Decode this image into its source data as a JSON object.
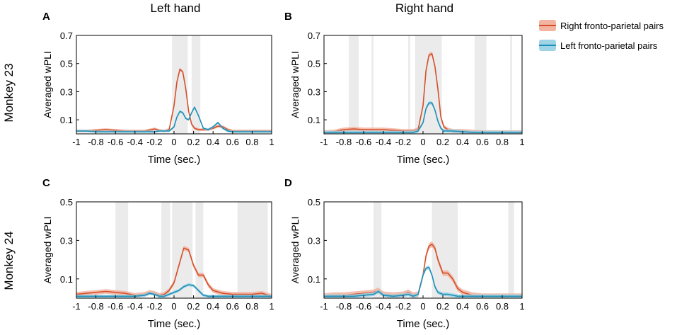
{
  "column_titles": [
    "Left hand",
    "Right hand"
  ],
  "row_labels": [
    "Monkey 23",
    "Monkey 24"
  ],
  "legend": [
    {
      "label": "Right fronto-parietal pairs",
      "color": "#d4502a",
      "band": "#f2b3a0"
    },
    {
      "label": "Left fronto-parietal pairs",
      "color": "#1d8fb8",
      "band": "#9fd3e6"
    }
  ],
  "shade_color": "#ebebeb",
  "chart_data": [
    {
      "panel": "A",
      "type": "line",
      "xlabel": "Time (sec.)",
      "ylabel": "Averaged wPLI",
      "xlim": [
        -1,
        1
      ],
      "ylim": [
        0,
        0.7
      ],
      "xticks": [
        -1,
        -0.8,
        -0.6,
        -0.4,
        -0.2,
        0,
        0.2,
        0.4,
        0.6,
        0.8,
        1
      ],
      "xtick_labels": [
        "-1",
        "-0.8",
        "-0.6",
        "-0.4",
        "-0.2",
        "0",
        "0.2",
        "0.4",
        "0.6",
        "0.8",
        "1"
      ],
      "yticks": [
        0.1,
        0.3,
        0.5,
        0.7
      ],
      "ytick_labels": [
        "0.1",
        "0.3",
        "0.5",
        "0.7"
      ],
      "shaded_intervals": [
        [
          -0.02,
          0.14
        ],
        [
          0.18,
          0.27
        ]
      ],
      "x": [
        -1,
        -0.9,
        -0.8,
        -0.7,
        -0.6,
        -0.5,
        -0.4,
        -0.3,
        -0.2,
        -0.15,
        -0.1,
        -0.05,
        0,
        0.03,
        0.06,
        0.09,
        0.12,
        0.15,
        0.18,
        0.21,
        0.25,
        0.3,
        0.35,
        0.4,
        0.45,
        0.5,
        0.55,
        0.6,
        0.7,
        0.8,
        0.9,
        1
      ],
      "series": [
        {
          "name": "Right fronto-parietal pairs",
          "err": 0.01,
          "values": [
            0.02,
            0.02,
            0.025,
            0.03,
            0.025,
            0.02,
            0.02,
            0.02,
            0.035,
            0.025,
            0.02,
            0.03,
            0.2,
            0.37,
            0.46,
            0.44,
            0.32,
            0.16,
            0.07,
            0.04,
            0.03,
            0.03,
            0.03,
            0.04,
            0.055,
            0.05,
            0.03,
            0.02,
            0.02,
            0.02,
            0.02,
            0.02
          ]
        },
        {
          "name": "Left fronto-parietal pairs",
          "err": 0.008,
          "values": [
            0.02,
            0.02,
            0.015,
            0.015,
            0.015,
            0.015,
            0.015,
            0.015,
            0.015,
            0.02,
            0.02,
            0.02,
            0.05,
            0.12,
            0.16,
            0.15,
            0.11,
            0.1,
            0.15,
            0.19,
            0.13,
            0.04,
            0.03,
            0.05,
            0.08,
            0.04,
            0.02,
            0.015,
            0.015,
            0.015,
            0.015,
            0.015
          ]
        }
      ]
    },
    {
      "panel": "B",
      "type": "line",
      "xlabel": "Time (sec.)",
      "ylabel": "Averaged wPLI",
      "xlim": [
        -1,
        1
      ],
      "ylim": [
        0,
        0.7
      ],
      "xticks": [
        -1,
        -0.8,
        -0.6,
        -0.4,
        -0.2,
        0,
        0.2,
        0.4,
        0.6,
        0.8,
        1
      ],
      "xtick_labels": [
        "-1",
        "-0.8",
        "-0.6",
        "-0.4",
        "-0.2",
        "0",
        "0.2",
        "0.4",
        "0.6",
        "0.8",
        "1"
      ],
      "yticks": [
        0.1,
        0.3,
        0.5,
        0.7
      ],
      "ytick_labels": [
        "0.1",
        "0.3",
        "0.5",
        "0.7"
      ],
      "shaded_intervals": [
        [
          -0.75,
          -0.65
        ],
        [
          -0.52,
          -0.5
        ],
        [
          -0.15,
          -0.13
        ],
        [
          -0.08,
          0.19
        ],
        [
          0.52,
          0.64
        ],
        [
          0.88,
          0.9
        ]
      ],
      "x": [
        -1,
        -0.9,
        -0.8,
        -0.7,
        -0.6,
        -0.5,
        -0.4,
        -0.3,
        -0.2,
        -0.1,
        -0.05,
        0,
        0.03,
        0.06,
        0.09,
        0.12,
        0.15,
        0.18,
        0.21,
        0.25,
        0.3,
        0.4,
        0.5,
        0.6,
        0.7,
        0.8,
        0.9,
        1
      ],
      "series": [
        {
          "name": "Right fronto-parietal pairs",
          "err": 0.015,
          "values": [
            0.01,
            0.015,
            0.03,
            0.035,
            0.03,
            0.03,
            0.03,
            0.025,
            0.02,
            0.02,
            0.03,
            0.2,
            0.45,
            0.56,
            0.57,
            0.48,
            0.32,
            0.12,
            0.05,
            0.03,
            0.02,
            0.02,
            0.015,
            0.01,
            0.01,
            0.01,
            0.01,
            0.01
          ]
        },
        {
          "name": "Left fronto-parietal pairs",
          "err": 0.012,
          "values": [
            0.01,
            0.01,
            0.01,
            0.01,
            0.01,
            0.01,
            0.01,
            0.01,
            0.01,
            0.01,
            0.02,
            0.08,
            0.18,
            0.22,
            0.22,
            0.17,
            0.09,
            0.04,
            0.02,
            0.02,
            0.02,
            0.015,
            0.01,
            0.01,
            0.01,
            0.01,
            0.01,
            0.01
          ]
        }
      ]
    },
    {
      "panel": "C",
      "type": "line",
      "xlabel": "Time (sec.)",
      "ylabel": "Averaged wPLI",
      "xlim": [
        -1,
        1
      ],
      "ylim": [
        0,
        0.5
      ],
      "xticks": [
        -1,
        -0.8,
        -0.6,
        -0.4,
        -0.2,
        0,
        0.2,
        0.4,
        0.6,
        0.8,
        1
      ],
      "xtick_labels": [
        "-1",
        "-0.8",
        "-0.6",
        "-0.4",
        "-0.2",
        "0",
        "0.2",
        "0.4",
        "0.6",
        "0.8",
        "1"
      ],
      "yticks": [
        0.1,
        0.3,
        0.5
      ],
      "ytick_labels": [
        "0.1",
        "0.3",
        "0.5"
      ],
      "shaded_intervals": [
        [
          -0.6,
          -0.47
        ],
        [
          -0.13,
          -0.04
        ],
        [
          -0.02,
          0.19
        ],
        [
          0.22,
          0.3
        ],
        [
          0.65,
          0.96
        ]
      ],
      "x": [
        -1,
        -0.9,
        -0.8,
        -0.7,
        -0.6,
        -0.5,
        -0.4,
        -0.3,
        -0.25,
        -0.2,
        -0.15,
        -0.1,
        -0.05,
        0,
        0.05,
        0.1,
        0.15,
        0.2,
        0.25,
        0.3,
        0.35,
        0.4,
        0.5,
        0.6,
        0.7,
        0.8,
        0.9,
        1
      ],
      "series": [
        {
          "name": "Right fronto-parietal pairs",
          "err": 0.012,
          "values": [
            0.02,
            0.025,
            0.03,
            0.035,
            0.03,
            0.025,
            0.015,
            0.02,
            0.03,
            0.025,
            0.015,
            0.02,
            0.04,
            0.08,
            0.17,
            0.26,
            0.25,
            0.17,
            0.12,
            0.12,
            0.07,
            0.04,
            0.025,
            0.02,
            0.02,
            0.02,
            0.025,
            0.01
          ]
        },
        {
          "name": "Left fronto-parietal pairs",
          "err": 0.008,
          "values": [
            0.01,
            0.01,
            0.01,
            0.01,
            0.01,
            0.01,
            0.01,
            0.015,
            0.025,
            0.02,
            0.01,
            0.01,
            0.02,
            0.03,
            0.04,
            0.06,
            0.07,
            0.065,
            0.04,
            0.015,
            0.01,
            0.01,
            0.01,
            0.01,
            0.01,
            0.01,
            0.01,
            0.01
          ]
        }
      ]
    },
    {
      "panel": "D",
      "type": "line",
      "xlabel": "Time (sec.)",
      "ylabel": "Averaged wPLI",
      "xlim": [
        -1,
        1
      ],
      "ylim": [
        0,
        0.5
      ],
      "xticks": [
        -1,
        -0.8,
        -0.6,
        -0.4,
        -0.2,
        0,
        0.2,
        0.4,
        0.6,
        0.8,
        1
      ],
      "xtick_labels": [
        "-1",
        "-0.8",
        "-0.6",
        "-0.4",
        "-0.2",
        "0",
        "0.2",
        "0.4",
        "0.6",
        "0.8",
        "1"
      ],
      "yticks": [
        0.1,
        0.3,
        0.5
      ],
      "ytick_labels": [
        "0.1",
        "0.3",
        "0.5"
      ],
      "shaded_intervals": [
        [
          -0.5,
          -0.42
        ],
        [
          0.09,
          0.35
        ],
        [
          0.86,
          0.92
        ]
      ],
      "x": [
        -1,
        -0.9,
        -0.8,
        -0.7,
        -0.6,
        -0.5,
        -0.45,
        -0.4,
        -0.3,
        -0.2,
        -0.15,
        -0.1,
        -0.05,
        0,
        0.03,
        0.06,
        0.09,
        0.12,
        0.15,
        0.2,
        0.25,
        0.3,
        0.35,
        0.4,
        0.5,
        0.6,
        0.8,
        1
      ],
      "series": [
        {
          "name": "Right fronto-parietal pairs",
          "err": 0.015,
          "values": [
            0.01,
            0.015,
            0.015,
            0.02,
            0.025,
            0.03,
            0.04,
            0.02,
            0.015,
            0.02,
            0.03,
            0.015,
            0.02,
            0.12,
            0.22,
            0.27,
            0.28,
            0.26,
            0.2,
            0.13,
            0.13,
            0.1,
            0.05,
            0.03,
            0.015,
            0.01,
            0.01,
            0.01
          ]
        },
        {
          "name": "Left fronto-parietal pairs",
          "err": 0.01,
          "values": [
            0.01,
            0.01,
            0.01,
            0.01,
            0.015,
            0.02,
            0.035,
            0.015,
            0.01,
            0.015,
            0.02,
            0.01,
            0.02,
            0.12,
            0.155,
            0.16,
            0.12,
            0.06,
            0.03,
            0.02,
            0.02,
            0.015,
            0.01,
            0.01,
            0.01,
            0.01,
            0.01,
            0.01
          ]
        }
      ]
    }
  ]
}
